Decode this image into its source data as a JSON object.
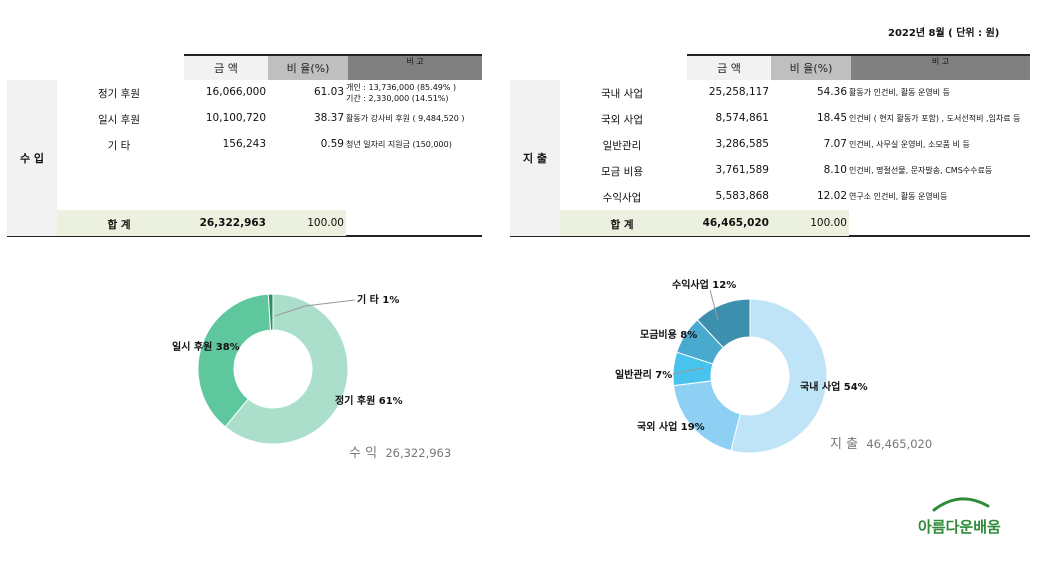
{
  "period": "2022년 8월 ( 단위 : 원)",
  "table_headers": {
    "amount": "금 액",
    "ratio": "비 율(%)",
    "note": "비 고"
  },
  "income": {
    "side_label": "수 입",
    "rows": [
      {
        "label": "정기 후원",
        "amount": "16,066,000",
        "ratio": "61.03",
        "note_lines": [
          "개인 : 13,736,000 (85.49% )",
          "기간 : 2,330,000 (14.51%)"
        ]
      },
      {
        "label": "일시 후원",
        "amount": "10,100,720",
        "ratio": "38.37",
        "note_lines": [
          "활동가 강사비 후원 ( 9,484,520 )"
        ]
      },
      {
        "label": "기 타",
        "amount": "156,243",
        "ratio": "0.59",
        "note_lines": [
          "청년 일자리 지원금 (150,000)"
        ]
      }
    ],
    "total": {
      "label": "합 계",
      "amount": "26,322,963",
      "ratio": "100.00"
    }
  },
  "expense": {
    "side_label": "지 출",
    "rows": [
      {
        "label": "국내 사업",
        "amount": "25,258,117",
        "ratio": "54.36",
        "note_lines": [
          "활동가 인건비, 활동 운영비 등"
        ]
      },
      {
        "label": "국외 사업",
        "amount": "8,574,861",
        "ratio": "18.45",
        "note_lines": [
          "인건비 ( 현지 활동가 포함) , 도서선적비 ,임차료 등"
        ]
      },
      {
        "label": "일반관리",
        "amount": "3,286,585",
        "ratio": "7.07",
        "note_lines": [
          "인건비, 사무실 운영비, 소모품 비 등"
        ]
      },
      {
        "label": "모금 비용",
        "amount": "3,761,589",
        "ratio": "8.10",
        "note_lines": [
          "인건비, 명절선물, 문자발송, CMS수수료등"
        ]
      },
      {
        "label": "수익사업",
        "amount": "5,583,868",
        "ratio": "12.02",
        "note_lines": [
          "연구소 인건비, 활동 운영비등"
        ]
      }
    ],
    "total": {
      "label": "합 계",
      "amount": "46,465,020",
      "ratio": "100.00"
    }
  },
  "chart_data": [
    {
      "type": "pie",
      "donut": true,
      "categories": [
        "정기 후원",
        "일시 후원",
        "기 타"
      ],
      "values": [
        61,
        38,
        1
      ],
      "labels": [
        "정기 후원 61%",
        "일시 후원 38%",
        "기 타 1%"
      ],
      "colors": [
        "#abdfcb",
        "#5ec79e",
        "#2f8f64"
      ],
      "summary_label": "수 익",
      "summary_value": "26,322,963"
    },
    {
      "type": "pie",
      "donut": true,
      "categories": [
        "국내 사업",
        "국외 사업",
        "일반관리",
        "모금비용",
        "수익사업"
      ],
      "values": [
        54,
        19,
        7,
        8,
        12
      ],
      "labels": [
        "국내 사업 54%",
        "국외 사업 19%",
        "일반관리 7%",
        "모금비용 8%",
        "수익사업 12%"
      ],
      "colors": [
        "#bfe3f7",
        "#8ed0f3",
        "#47c3ee",
        "#49a9ce",
        "#3d8fae"
      ],
      "summary_label": "지 출",
      "summary_value": "46,465,020"
    }
  ],
  "logo": {
    "text": "아름다운배움",
    "color": "#2e8b3a"
  }
}
